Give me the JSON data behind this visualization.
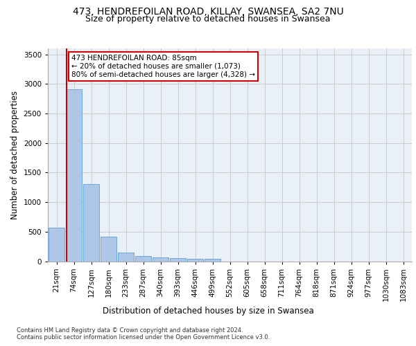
{
  "title_line1": "473, HENDREFOILAN ROAD, KILLAY, SWANSEA, SA2 7NU",
  "title_line2": "Size of property relative to detached houses in Swansea",
  "xlabel": "Distribution of detached houses by size in Swansea",
  "ylabel": "Number of detached properties",
  "footer_line1": "Contains HM Land Registry data © Crown copyright and database right 2024.",
  "footer_line2": "Contains public sector information licensed under the Open Government Licence v3.0.",
  "bar_labels": [
    "21sqm",
    "74sqm",
    "127sqm",
    "180sqm",
    "233sqm",
    "287sqm",
    "340sqm",
    "393sqm",
    "446sqm",
    "499sqm",
    "552sqm",
    "605sqm",
    "658sqm",
    "711sqm",
    "764sqm",
    "818sqm",
    "871sqm",
    "924sqm",
    "977sqm",
    "1030sqm",
    "1083sqm"
  ],
  "bar_values": [
    570,
    2910,
    1310,
    410,
    150,
    85,
    60,
    55,
    45,
    40,
    0,
    0,
    0,
    0,
    0,
    0,
    0,
    0,
    0,
    0,
    0
  ],
  "bar_color": "#aec6e8",
  "bar_edge_color": "#5a9fd4",
  "highlight_line_color": "#cc0000",
  "annotation_text": "473 HENDREFOILAN ROAD: 85sqm\n← 20% of detached houses are smaller (1,073)\n80% of semi-detached houses are larger (4,328) →",
  "annotation_box_color": "#ffffff",
  "annotation_box_edge": "#cc0000",
  "ylim": [
    0,
    3600
  ],
  "yticks": [
    0,
    500,
    1000,
    1500,
    2000,
    2500,
    3000,
    3500
  ],
  "grid_color": "#cccccc",
  "bg_color": "#eaf0f8",
  "title_fontsize": 10,
  "subtitle_fontsize": 9,
  "axis_label_fontsize": 8.5,
  "tick_fontsize": 7.5,
  "annotation_fontsize": 7.5,
  "footer_fontsize": 6.0
}
